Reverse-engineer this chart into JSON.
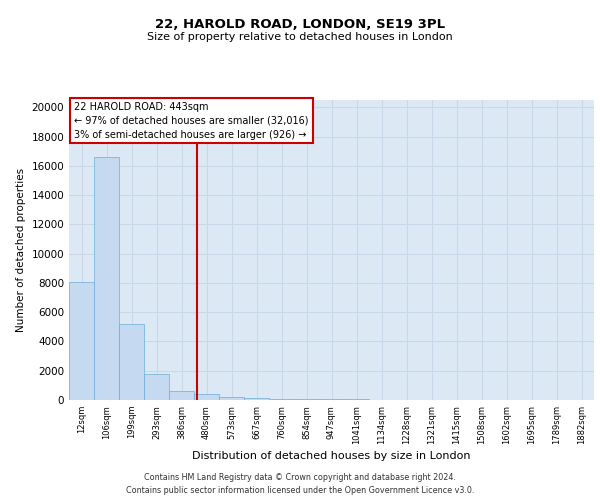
{
  "title1": "22, HAROLD ROAD, LONDON, SE19 3PL",
  "title2": "Size of property relative to detached houses in London",
  "xlabel": "Distribution of detached houses by size in London",
  "ylabel": "Number of detached properties",
  "bar_values": [
    8050,
    16600,
    5200,
    1800,
    600,
    420,
    200,
    110,
    90,
    55,
    45,
    40,
    30,
    20,
    15,
    10,
    5,
    5,
    5,
    5,
    0
  ],
  "x_labels": [
    "12sqm",
    "106sqm",
    "199sqm",
    "293sqm",
    "386sqm",
    "480sqm",
    "573sqm",
    "667sqm",
    "760sqm",
    "854sqm",
    "947sqm",
    "1041sqm",
    "1134sqm",
    "1228sqm",
    "1321sqm",
    "1415sqm",
    "1508sqm",
    "1602sqm",
    "1695sqm",
    "1789sqm",
    "1882sqm"
  ],
  "bar_color": "#c5d9f0",
  "bar_edge_color": "#6baed6",
  "vline_x": 4.62,
  "vline_color": "#cc0000",
  "annotation_line1": "22 HAROLD ROAD: 443sqm",
  "annotation_line2": "← 97% of detached houses are smaller (32,016)",
  "annotation_line3": "3% of semi-detached houses are larger (926) →",
  "annotation_box_color": "#ffffff",
  "annotation_box_edge": "#cc0000",
  "ylim": [
    0,
    20500
  ],
  "yticks": [
    0,
    2000,
    4000,
    6000,
    8000,
    10000,
    12000,
    14000,
    16000,
    18000,
    20000
  ],
  "grid_color": "#c8d8e8",
  "background_color": "#dce9f5",
  "fig_background": "#ffffff",
  "footer1": "Contains HM Land Registry data © Crown copyright and database right 2024.",
  "footer2": "Contains public sector information licensed under the Open Government Licence v3.0."
}
